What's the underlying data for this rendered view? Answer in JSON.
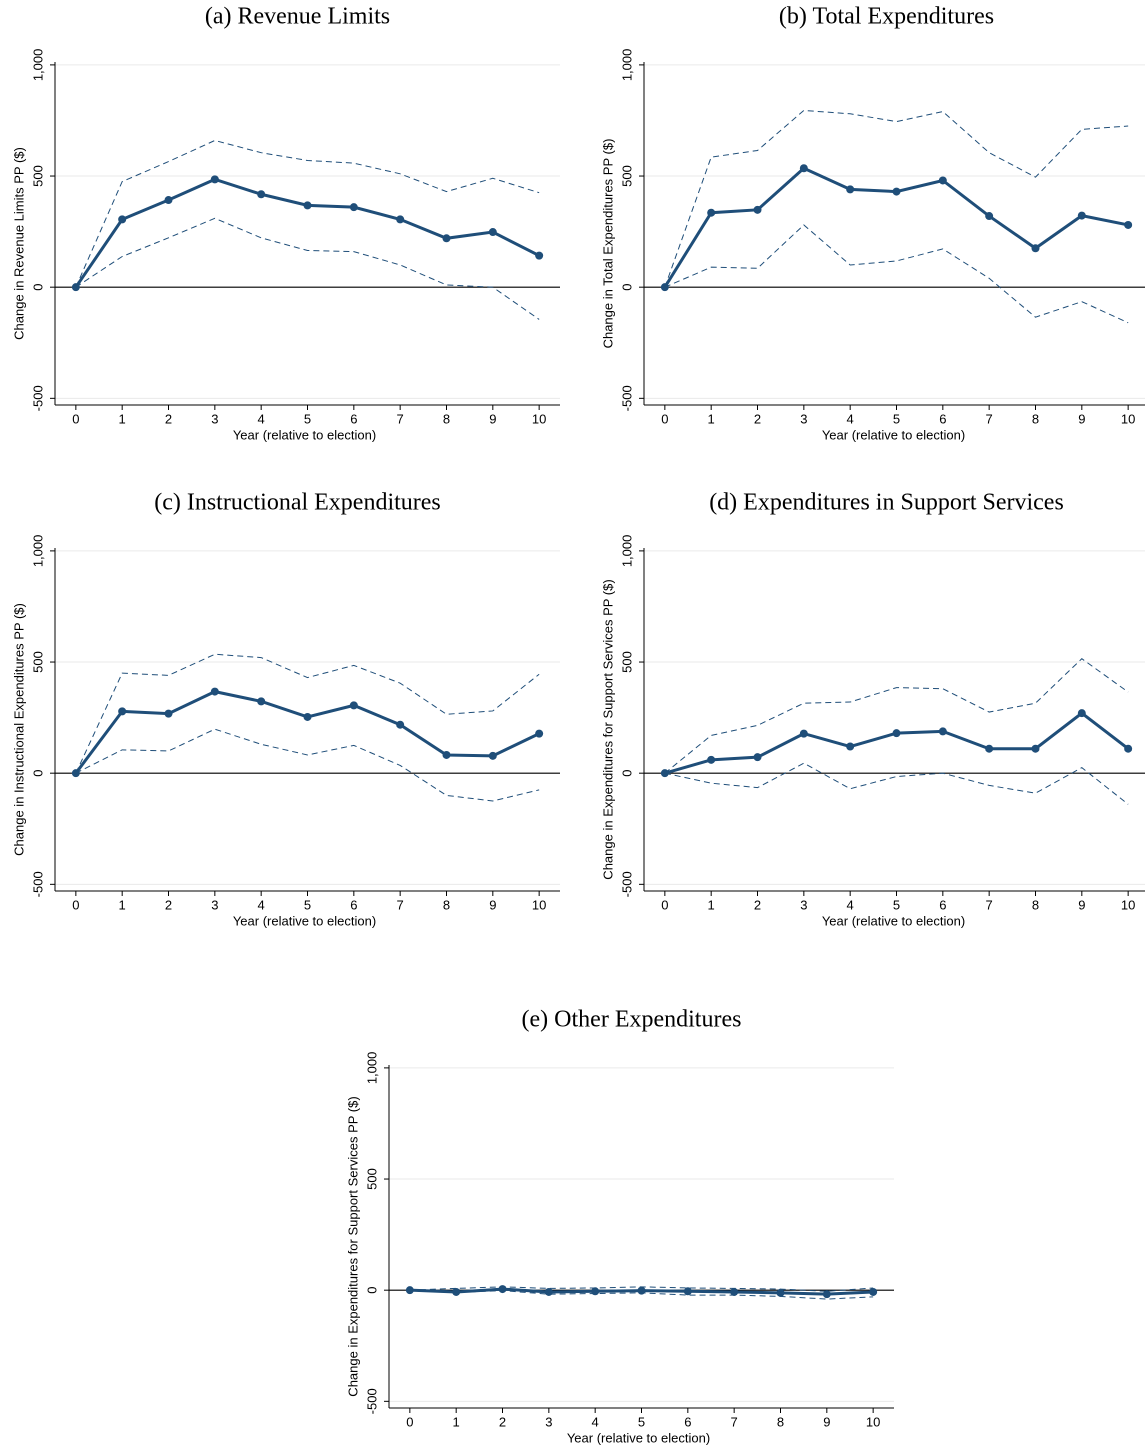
{
  "chart_data": [
    {
      "type": "line",
      "title": "(a)  Revenue Limits",
      "x_label": "Year (relative to election)",
      "y_label": "Change in Revenue Limits PP ($)",
      "x": [
        0,
        1,
        2,
        3,
        4,
        5,
        6,
        7,
        8,
        9,
        10
      ],
      "xlim": [
        -0.45,
        10.45
      ],
      "xticks": [
        0,
        1,
        2,
        3,
        4,
        5,
        6,
        7,
        8,
        9,
        10
      ],
      "ylim": [
        -530,
        1013
      ],
      "yticks": [
        -500,
        0,
        500,
        {
          "value": 1000,
          "label": "1,000"
        }
      ],
      "grid": true,
      "zero_line": true,
      "series": [
        {
          "color": "#1f4e79",
          "dashed": false,
          "markers": true,
          "values": [
            0,
            305,
            392,
            485,
            418,
            368,
            360,
            305,
            220,
            248,
            142
          ]
        },
        {
          "color": "#1f4e79",
          "dashed": true,
          "markers": false,
          "values": [
            0,
            475,
            565,
            660,
            605,
            570,
            558,
            510,
            430,
            490,
            425
          ]
        },
        {
          "color": "#1f4e79",
          "dashed": true,
          "markers": false,
          "values": [
            0,
            138,
            222,
            310,
            222,
            165,
            160,
            100,
            10,
            0,
            -145
          ]
        }
      ]
    },
    {
      "type": "line",
      "title": "(b)  Total Expenditures",
      "x_label": "Year (relative to election)",
      "y_label": "Change in Total Expenditures PP ($)",
      "x": [
        0,
        1,
        2,
        3,
        4,
        5,
        6,
        7,
        8,
        9,
        10
      ],
      "xlim": [
        -0.45,
        10.45
      ],
      "xticks": [
        0,
        1,
        2,
        3,
        4,
        5,
        6,
        7,
        8,
        9,
        10
      ],
      "ylim": [
        -530,
        1013
      ],
      "yticks": [
        -500,
        0,
        500,
        {
          "value": 1000,
          "label": "1,000"
        }
      ],
      "grid": true,
      "zero_line": true,
      "series": [
        {
          "color": "#1f4e79",
          "dashed": false,
          "markers": true,
          "values": [
            0,
            335,
            348,
            535,
            440,
            430,
            480,
            320,
            175,
            322,
            280
          ]
        },
        {
          "color": "#1f4e79",
          "dashed": true,
          "markers": false,
          "values": [
            0,
            585,
            615,
            795,
            780,
            745,
            790,
            605,
            495,
            710,
            725
          ]
        },
        {
          "color": "#1f4e79",
          "dashed": true,
          "markers": false,
          "values": [
            0,
            90,
            85,
            280,
            100,
            118,
            172,
            40,
            -135,
            -65,
            -160
          ]
        }
      ]
    },
    {
      "type": "line",
      "title": "(c)  Instructional Expenditures",
      "x_label": "Year (relative to election)",
      "y_label": "Change in Instructional Expenditures PP ($)",
      "x": [
        0,
        1,
        2,
        3,
        4,
        5,
        6,
        7,
        8,
        9,
        10
      ],
      "xlim": [
        -0.45,
        10.45
      ],
      "xticks": [
        0,
        1,
        2,
        3,
        4,
        5,
        6,
        7,
        8,
        9,
        10
      ],
      "ylim": [
        -530,
        1013
      ],
      "yticks": [
        -500,
        0,
        500,
        {
          "value": 1000,
          "label": "1,000"
        }
      ],
      "grid": true,
      "zero_line": true,
      "series": [
        {
          "color": "#1f4e79",
          "dashed": false,
          "markers": true,
          "values": [
            0,
            278,
            268,
            367,
            323,
            253,
            305,
            218,
            82,
            78,
            178
          ]
        },
        {
          "color": "#1f4e79",
          "dashed": true,
          "markers": false,
          "values": [
            0,
            450,
            440,
            535,
            520,
            430,
            485,
            405,
            265,
            280,
            445
          ]
        },
        {
          "color": "#1f4e79",
          "dashed": true,
          "markers": false,
          "values": [
            0,
            105,
            100,
            198,
            130,
            82,
            125,
            35,
            -100,
            -125,
            -75
          ]
        }
      ]
    },
    {
      "type": "line",
      "title": "(d)  Expenditures in Support Services",
      "x_label": "Year (relative to election)",
      "y_label": "Change in Expenditures for Support Services PP ($)",
      "x": [
        0,
        1,
        2,
        3,
        4,
        5,
        6,
        7,
        8,
        9,
        10
      ],
      "xlim": [
        -0.45,
        10.45
      ],
      "xticks": [
        0,
        1,
        2,
        3,
        4,
        5,
        6,
        7,
        8,
        9,
        10
      ],
      "ylim": [
        -530,
        1013
      ],
      "yticks": [
        -500,
        0,
        500,
        {
          "value": 1000,
          "label": "1,000"
        }
      ],
      "grid": true,
      "zero_line": true,
      "series": [
        {
          "color": "#1f4e79",
          "dashed": false,
          "markers": true,
          "values": [
            0,
            60,
            72,
            178,
            120,
            180,
            188,
            110,
            110,
            270,
            110
          ]
        },
        {
          "color": "#1f4e79",
          "dashed": true,
          "markers": false,
          "values": [
            0,
            170,
            215,
            315,
            320,
            385,
            380,
            275,
            315,
            515,
            365
          ]
        },
        {
          "color": "#1f4e79",
          "dashed": true,
          "markers": false,
          "values": [
            0,
            -45,
            -65,
            45,
            -70,
            -15,
            0,
            -55,
            -90,
            25,
            -140
          ]
        }
      ]
    },
    {
      "type": "line",
      "title": "(e)  Other Expenditures",
      "x_label": "Year (relative to election)",
      "y_label": "Change in Expenditures for Support Services PP ($)",
      "x": [
        0,
        1,
        2,
        3,
        4,
        5,
        6,
        7,
        8,
        9,
        10
      ],
      "xlim": [
        -0.45,
        10.45
      ],
      "xticks": [
        0,
        1,
        2,
        3,
        4,
        5,
        6,
        7,
        8,
        9,
        10
      ],
      "ylim": [
        -530,
        1013
      ],
      "yticks": [
        -500,
        0,
        500,
        {
          "value": 1000,
          "label": "1,000"
        }
      ],
      "grid": true,
      "zero_line": true,
      "series": [
        {
          "color": "#1f4e79",
          "dashed": false,
          "markers": true,
          "values": [
            0,
            -8,
            5,
            -8,
            -5,
            -2,
            -5,
            -8,
            -12,
            -18,
            -8
          ]
        },
        {
          "color": "#1f4e79",
          "dashed": true,
          "markers": false,
          "values": [
            0,
            8,
            15,
            8,
            10,
            15,
            10,
            8,
            5,
            -5,
            10
          ]
        },
        {
          "color": "#1f4e79",
          "dashed": true,
          "markers": false,
          "values": [
            0,
            -10,
            -2,
            -18,
            -15,
            -12,
            -22,
            -22,
            -28,
            -40,
            -30
          ]
        }
      ]
    }
  ]
}
